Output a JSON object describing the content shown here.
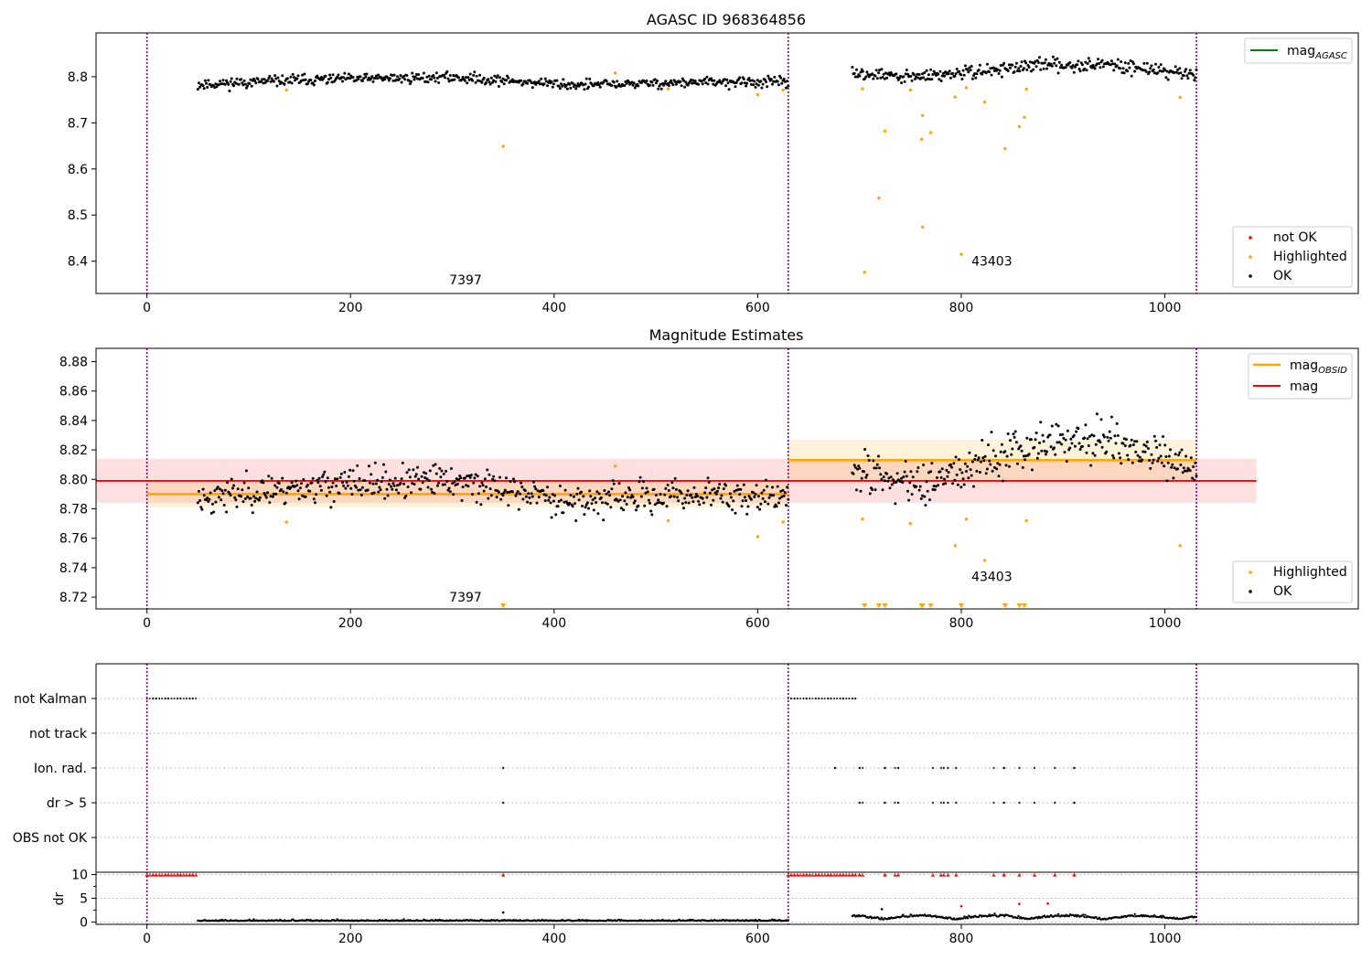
{
  "figure": {
    "title_top": "AGASC ID 968364856",
    "title_mid": "Magnitude Estimates"
  },
  "chart_data": [
    {
      "type": "scatter",
      "title": "AGASC ID 968364856",
      "xlim": [
        -50,
        1190
      ],
      "ylim": [
        8.33,
        8.895
      ],
      "xticks": [
        "0",
        "200",
        "400",
        "600",
        "800",
        "1000"
      ],
      "xtick_values": [
        0,
        200,
        400,
        600,
        800,
        1000
      ],
      "yticks": [
        "8.4",
        "8.5",
        "8.6",
        "8.7",
        "8.8"
      ],
      "ytick_values": [
        8.4,
        8.5,
        8.6,
        8.7,
        8.8
      ],
      "obs_boundaries": [
        0,
        630,
        1031
      ],
      "annotations": [
        {
          "text": "7397",
          "x": 313,
          "y": 8.35
        },
        {
          "text": "43403",
          "x": 830,
          "y": 8.39
        }
      ],
      "series": [
        {
          "name": "OK",
          "color": "#000000",
          "segments": [
            {
              "x_start": 50,
              "x_end": 630,
              "n": 560,
              "levels": [
                [
                  50,
                  8.783
                ],
                [
                  150,
                  8.793
                ],
                [
                  300,
                  8.799
                ],
                [
                  420,
                  8.782
                ],
                [
                  550,
                  8.788
                ],
                [
                  630,
                  8.788
                ]
              ],
              "noise": 0.0055
            },
            {
              "x_start": 693,
              "x_end": 1031,
              "n": 330,
              "levels": [
                [
                  693,
                  8.808
                ],
                [
                  750,
                  8.798
                ],
                [
                  820,
                  8.812
                ],
                [
                  880,
                  8.826
                ],
                [
                  950,
                  8.826
                ],
                [
                  1031,
                  8.804
                ]
              ],
              "noise": 0.007
            }
          ]
        },
        {
          "name": "Highlighted",
          "color": "#ffa500",
          "points": [
            [
              137,
              8.771
            ],
            [
              350,
              8.649
            ],
            [
              460,
              8.808
            ],
            [
              512,
              8.774
            ],
            [
              600,
              8.761
            ],
            [
              625,
              8.771
            ],
            [
              703,
              8.774
            ],
            [
              705,
              8.376
            ],
            [
              719,
              8.537
            ],
            [
              725,
              8.682
            ],
            [
              750,
              8.771
            ],
            [
              761,
              8.664
            ],
            [
              762,
              8.716
            ],
            [
              762,
              8.474
            ],
            [
              770,
              8.679
            ],
            [
              794,
              8.756
            ],
            [
              800,
              8.415
            ],
            [
              805,
              8.776
            ],
            [
              823,
              8.745
            ],
            [
              843,
              8.644
            ],
            [
              857,
              8.692
            ],
            [
              862,
              8.712
            ],
            [
              864,
              8.773
            ],
            [
              1015,
              8.755
            ]
          ]
        },
        {
          "name": "not OK",
          "color": "#ff0000",
          "points": []
        }
      ],
      "legend_line": {
        "name": "mag_AGASC",
        "base": "mag",
        "sub": "AGASC",
        "color": "#008000"
      },
      "legend_scatter": [
        "not OK",
        "Highlighted",
        "OK"
      ]
    },
    {
      "type": "scatter",
      "title": "Magnitude Estimates",
      "xlim": [
        -50,
        1190
      ],
      "ylim": [
        8.712,
        8.889
      ],
      "xticks": [
        "0",
        "200",
        "400",
        "600",
        "800",
        "1000"
      ],
      "xtick_values": [
        0,
        200,
        400,
        600,
        800,
        1000
      ],
      "yticks": [
        "8.72",
        "8.74",
        "8.76",
        "8.78",
        "8.80",
        "8.82",
        "8.84",
        "8.86",
        "8.88"
      ],
      "ytick_values": [
        8.72,
        8.74,
        8.76,
        8.78,
        8.8,
        8.82,
        8.84,
        8.86,
        8.88
      ],
      "obs_boundaries": [
        0,
        630,
        1031
      ],
      "annotations": [
        {
          "text": "7397",
          "x": 313,
          "y": 8.717
        },
        {
          "text": "43403",
          "x": 830,
          "y": 8.731
        }
      ],
      "mag": {
        "value": 8.799,
        "band": [
          8.784,
          8.814
        ],
        "x_range": [
          -50,
          1090
        ],
        "color": "#ff0000"
      },
      "mag_obsid": [
        {
          "x_range": [
            0,
            630
          ],
          "value": 8.79,
          "band": [
            8.781,
            8.799
          ]
        },
        {
          "x_range": [
            630,
            1031
          ],
          "value": 8.813,
          "band": [
            8.799,
            8.827
          ]
        }
      ],
      "series": [
        {
          "name": "OK",
          "color": "#000000",
          "segments": [
            {
              "x_start": 50,
              "x_end": 630,
              "n": 560,
              "levels": [
                [
                  50,
                  8.787
                ],
                [
                  150,
                  8.795
                ],
                [
                  300,
                  8.799
                ],
                [
                  420,
                  8.785
                ],
                [
                  550,
                  8.79
                ],
                [
                  630,
                  8.787
                ]
              ],
              "noise": 0.0055
            },
            {
              "x_start": 693,
              "x_end": 1031,
              "n": 330,
              "levels": [
                [
                  693,
                  8.808
                ],
                [
                  750,
                  8.796
                ],
                [
                  820,
                  8.812
                ],
                [
                  880,
                  8.826
                ],
                [
                  950,
                  8.826
                ],
                [
                  1031,
                  8.804
                ]
              ],
              "noise": 0.007
            }
          ]
        },
        {
          "name": "Highlighted",
          "color": "#ffa500",
          "points": [
            [
              137,
              8.771
            ],
            [
              460,
              8.809
            ],
            [
              512,
              8.772
            ],
            [
              600,
              8.761
            ],
            [
              625,
              8.771
            ],
            [
              703,
              8.773
            ],
            [
              750,
              8.77
            ],
            [
              794,
              8.755
            ],
            [
              805,
              8.773
            ],
            [
              823,
              8.745
            ],
            [
              864,
              8.772
            ],
            [
              1015,
              8.755
            ]
          ]
        },
        {
          "name": "Highlighted (below range)",
          "color": "#ffa500",
          "markers_at_bottom": [
            350,
            705,
            719,
            725,
            761,
            762,
            770,
            800,
            843,
            857,
            862
          ]
        }
      ],
      "legend_lines": [
        {
          "name": "mag_OBSID",
          "base": "mag",
          "sub": "OBSID",
          "color": "#ffa500"
        },
        {
          "name": "mag",
          "base": "mag",
          "sub": "",
          "color": "#ff0000"
        }
      ],
      "legend_scatter": [
        "Highlighted",
        "OK"
      ]
    },
    {
      "type": "scatter",
      "title": "",
      "xlim": [
        -50,
        1190
      ],
      "flag_rows": [
        "not Kalman",
        "not track",
        "Ion. rad.",
        "dr > 5",
        "OBS not OK"
      ],
      "flags": {
        "not Kalman": [
          [
            0,
            50
          ],
          [
            630,
            696
          ]
        ],
        "not track": [],
        "Ion. rad.": [
          350,
          676,
          700,
          703,
          725,
          735,
          738,
          772,
          780,
          783,
          787,
          795,
          832,
          842,
          857,
          872,
          892,
          911
        ],
        "dr > 5": [
          350,
          700,
          703,
          725,
          735,
          738,
          772,
          780,
          783,
          787,
          795,
          832,
          842,
          857,
          872,
          892,
          911
        ],
        "OBS not OK": []
      }
    },
    {
      "type": "scatter",
      "title": "",
      "ylabel": "dr",
      "xlim": [
        -50,
        1190
      ],
      "ylim": [
        -0.5,
        10.5
      ],
      "xticks": [
        "0",
        "200",
        "400",
        "600",
        "800",
        "1000"
      ],
      "xtick_values": [
        0,
        200,
        400,
        600,
        800,
        1000
      ],
      "yticks": [
        "0",
        "5",
        "10"
      ],
      "ytick_values": [
        0,
        5,
        10
      ],
      "capped_red_markers": {
        "value": 10,
        "ranges": [
          [
            0,
            50
          ],
          [
            630,
            696
          ]
        ],
        "points": [
          350,
          700,
          703,
          725,
          735,
          738,
          772,
          780,
          783,
          787,
          795,
          832,
          842,
          857,
          872,
          892,
          911
        ]
      },
      "red_points": [
        [
          800,
          3.3
        ],
        [
          857,
          3.8
        ],
        [
          885,
          3.9
        ]
      ],
      "black_points": [
        [
          350,
          2.0
        ],
        [
          722,
          2.7
        ]
      ],
      "dr_baseline": [
        {
          "x_start": 50,
          "x_end": 630,
          "n": 560,
          "base": 0.2,
          "noise": 0.12
        },
        {
          "x_start": 693,
          "x_end": 1031,
          "n": 320,
          "base": 0.9,
          "noise": 0.35
        }
      ]
    }
  ]
}
